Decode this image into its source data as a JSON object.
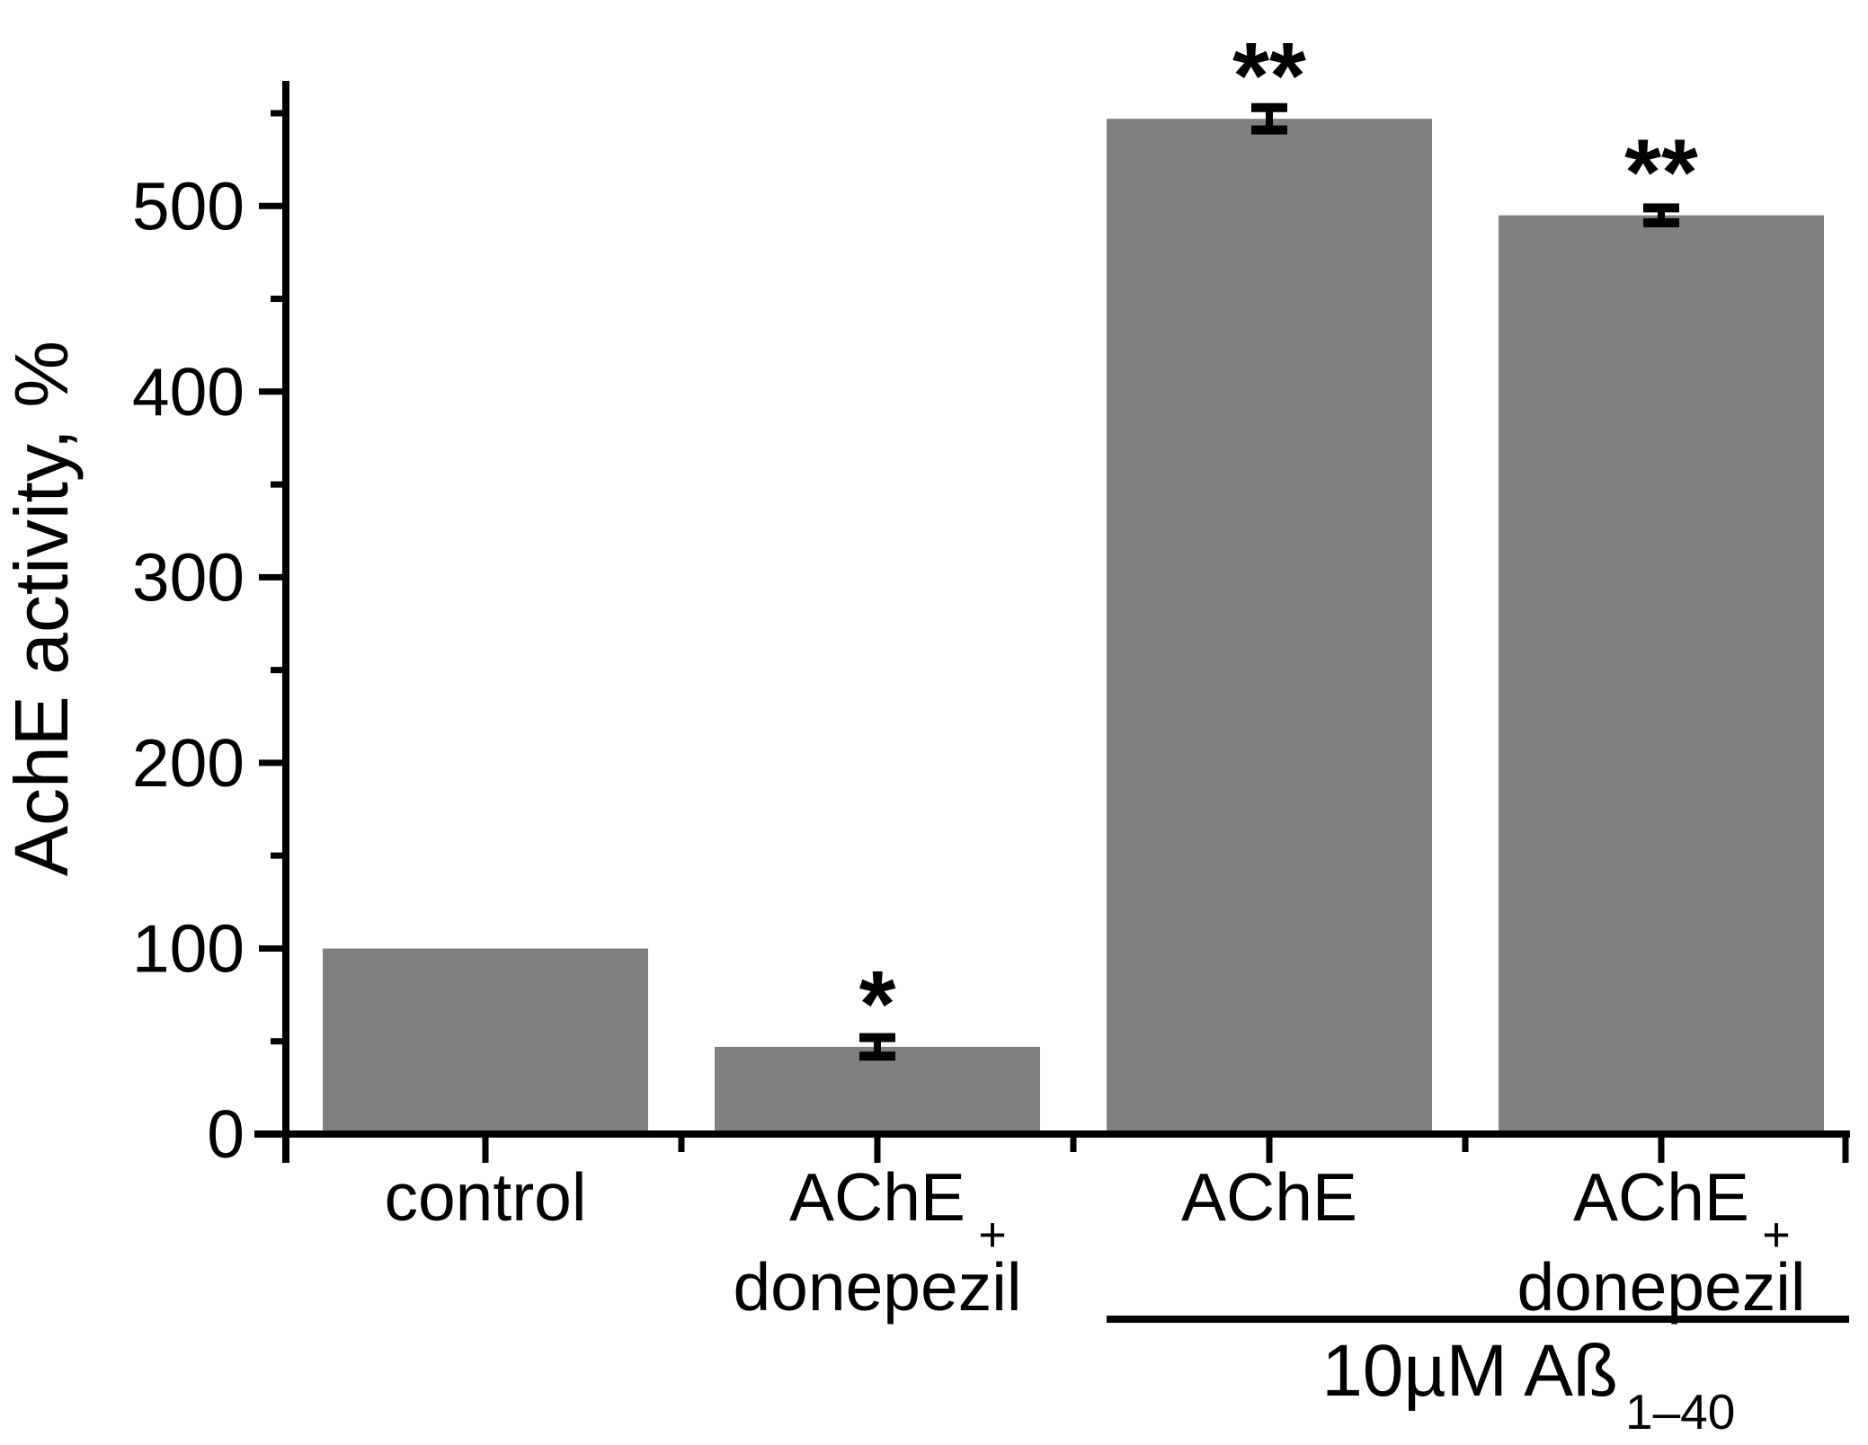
{
  "figure": {
    "background": "#ffffff",
    "bar_color": "#808080",
    "axis_color": "#000000",
    "text_color": "#000000"
  },
  "chart_data": {
    "type": "bar",
    "title": "",
    "xlabel": "",
    "ylabel": "AchE activity, %",
    "ylim": [
      0,
      565
    ],
    "y_major_ticks": [
      0,
      100,
      200,
      300,
      400,
      500
    ],
    "y_minor_tick_step": 50,
    "y_minor_tick_max": 550,
    "grid": false,
    "legend": false,
    "categories": [
      {
        "line1": "control",
        "plus": "",
        "line2": ""
      },
      {
        "line1": "AChE",
        "plus": "+",
        "line2": "donepezil"
      },
      {
        "line1": "AChE",
        "plus": "",
        "line2": ""
      },
      {
        "line1": "AChE",
        "plus": "+",
        "line2": "donepezil"
      }
    ],
    "values": [
      100,
      47,
      547,
      495
    ],
    "errors": [
      0,
      5,
      6,
      4
    ],
    "significance": [
      "",
      "*",
      "**",
      "**"
    ],
    "group_annotation": {
      "text": "10µM Aß",
      "subscript": "1–40",
      "start_category": 2,
      "end_category": 3
    }
  }
}
